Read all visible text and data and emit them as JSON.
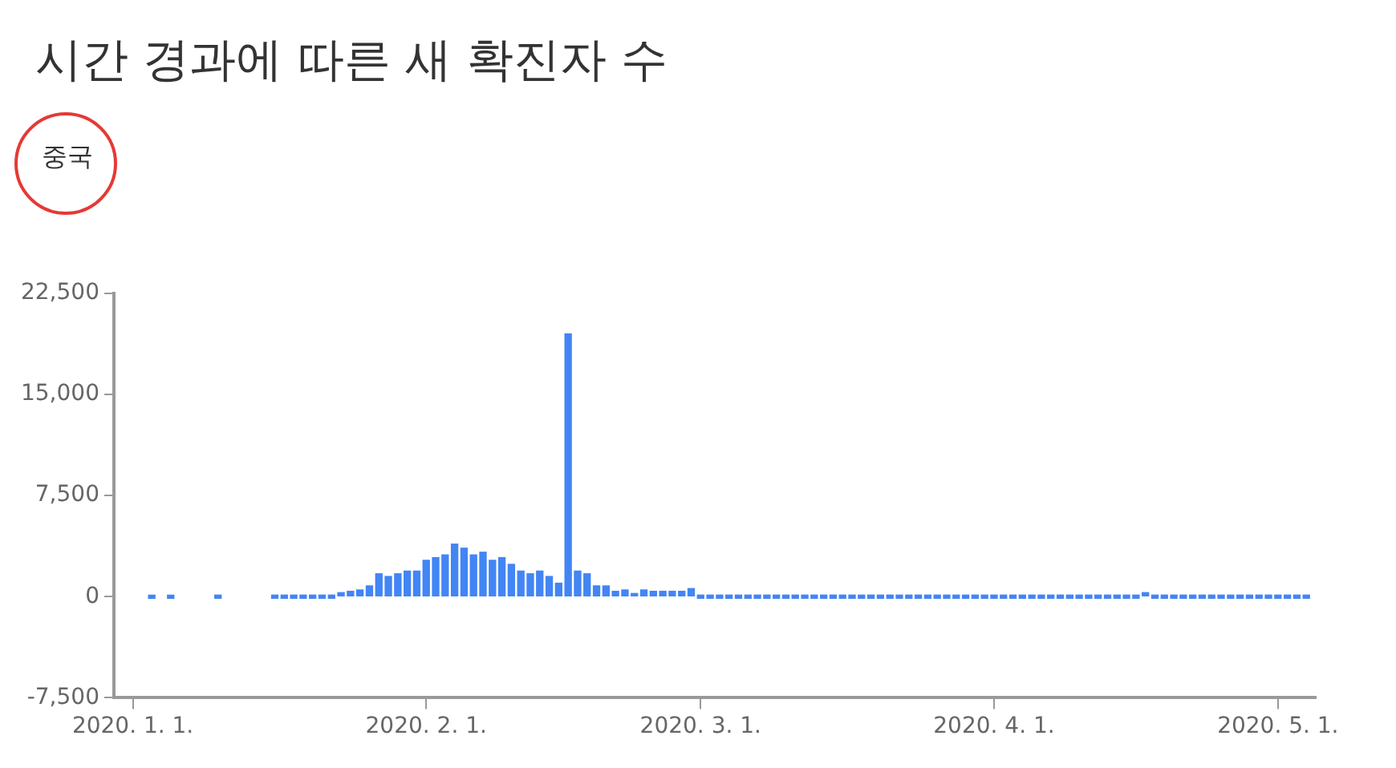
{
  "chart_data": {
    "type": "bar",
    "title": "시간 경과에 따른 새 확진자 수",
    "subtitle": "중국",
    "color": "#4285f4",
    "x": [
      "2020-01-03",
      "2020-01-05",
      "2020-01-10",
      "2020-01-16",
      "2020-01-17",
      "2020-01-18",
      "2020-01-19",
      "2020-01-20",
      "2020-01-21",
      "2020-01-22",
      "2020-01-23",
      "2020-01-24",
      "2020-01-25",
      "2020-01-26",
      "2020-01-27",
      "2020-01-28",
      "2020-01-29",
      "2020-01-30",
      "2020-01-31",
      "2020-02-01",
      "2020-02-02",
      "2020-02-03",
      "2020-02-04",
      "2020-02-05",
      "2020-02-06",
      "2020-02-07",
      "2020-02-08",
      "2020-02-09",
      "2020-02-10",
      "2020-02-11",
      "2020-02-12",
      "2020-02-13",
      "2020-02-14",
      "2020-02-15",
      "2020-02-16",
      "2020-02-17",
      "2020-02-18",
      "2020-02-19",
      "2020-02-20",
      "2020-02-21",
      "2020-02-22",
      "2020-02-23",
      "2020-02-24",
      "2020-02-25",
      "2020-02-26",
      "2020-02-27",
      "2020-02-28",
      "2020-02-29",
      "2020-03-01",
      "2020-03-02",
      "2020-03-03",
      "2020-03-04",
      "2020-03-05",
      "2020-03-06",
      "2020-03-07",
      "2020-03-08",
      "2020-03-09",
      "2020-03-10",
      "2020-03-11",
      "2020-03-12",
      "2020-03-13",
      "2020-03-14",
      "2020-03-15",
      "2020-03-16",
      "2020-03-17",
      "2020-03-18",
      "2020-03-19",
      "2020-03-20",
      "2020-03-21",
      "2020-03-22",
      "2020-03-23",
      "2020-03-24",
      "2020-03-25",
      "2020-03-26",
      "2020-03-27",
      "2020-03-28",
      "2020-03-29",
      "2020-03-30",
      "2020-03-31",
      "2020-04-01",
      "2020-04-02",
      "2020-04-03",
      "2020-04-04",
      "2020-04-05",
      "2020-04-06",
      "2020-04-07",
      "2020-04-08",
      "2020-04-09",
      "2020-04-10",
      "2020-04-11",
      "2020-04-12",
      "2020-04-13",
      "2020-04-14",
      "2020-04-15",
      "2020-04-16",
      "2020-04-17",
      "2020-04-18",
      "2020-04-19",
      "2020-04-20",
      "2020-04-21",
      "2020-04-22",
      "2020-04-23",
      "2020-04-24",
      "2020-04-25",
      "2020-04-26",
      "2020-04-27",
      "2020-04-28",
      "2020-04-29",
      "2020-04-30",
      "2020-05-01",
      "2020-05-02",
      "2020-05-03",
      "2020-05-04"
    ],
    "values": [
      0,
      0,
      0,
      0,
      0,
      0,
      0,
      0,
      0,
      0,
      300,
      400,
      500,
      800,
      1700,
      1500,
      1700,
      1900,
      1900,
      2700,
      2900,
      3100,
      3900,
      3600,
      3100,
      3300,
      2700,
      2900,
      2400,
      1900,
      1700,
      1900,
      1500,
      1000,
      19500,
      1900,
      1700,
      800,
      800,
      400,
      500,
      100,
      500,
      400,
      400,
      400,
      400,
      600,
      0,
      0,
      0,
      0,
      0,
      0,
      0,
      0,
      0,
      0,
      0,
      0,
      0,
      0,
      0,
      0,
      0,
      0,
      0,
      0,
      0,
      0,
      0,
      0,
      0,
      0,
      0,
      0,
      0,
      0,
      0,
      0,
      0,
      0,
      0,
      0,
      0,
      0,
      0,
      0,
      0,
      0,
      0,
      0,
      0,
      0,
      0,
      300,
      0,
      0,
      0,
      0,
      0,
      0,
      0,
      0,
      0,
      0,
      0,
      0,
      0,
      0,
      0,
      0,
      0
    ],
    "xlim": [
      "2019-12-30",
      "2020-05-05"
    ],
    "xticks": [
      {
        "value": "2020-01-01",
        "label": "2020. 1. 1."
      },
      {
        "value": "2020-02-01",
        "label": "2020. 2. 1."
      },
      {
        "value": "2020-03-01",
        "label": "2020. 3. 1."
      },
      {
        "value": "2020-04-01",
        "label": "2020. 4. 1."
      },
      {
        "value": "2020-05-01",
        "label": "2020. 5. 1."
      }
    ],
    "ylim": [
      -7500,
      22500
    ],
    "yticks": [
      {
        "value": -7500,
        "label": "-7,500"
      },
      {
        "value": 0,
        "label": "0"
      },
      {
        "value": 7500,
        "label": "7,500"
      },
      {
        "value": 15000,
        "label": "15,000"
      },
      {
        "value": 22500,
        "label": "22,500"
      }
    ],
    "grid": false,
    "legend": false
  }
}
